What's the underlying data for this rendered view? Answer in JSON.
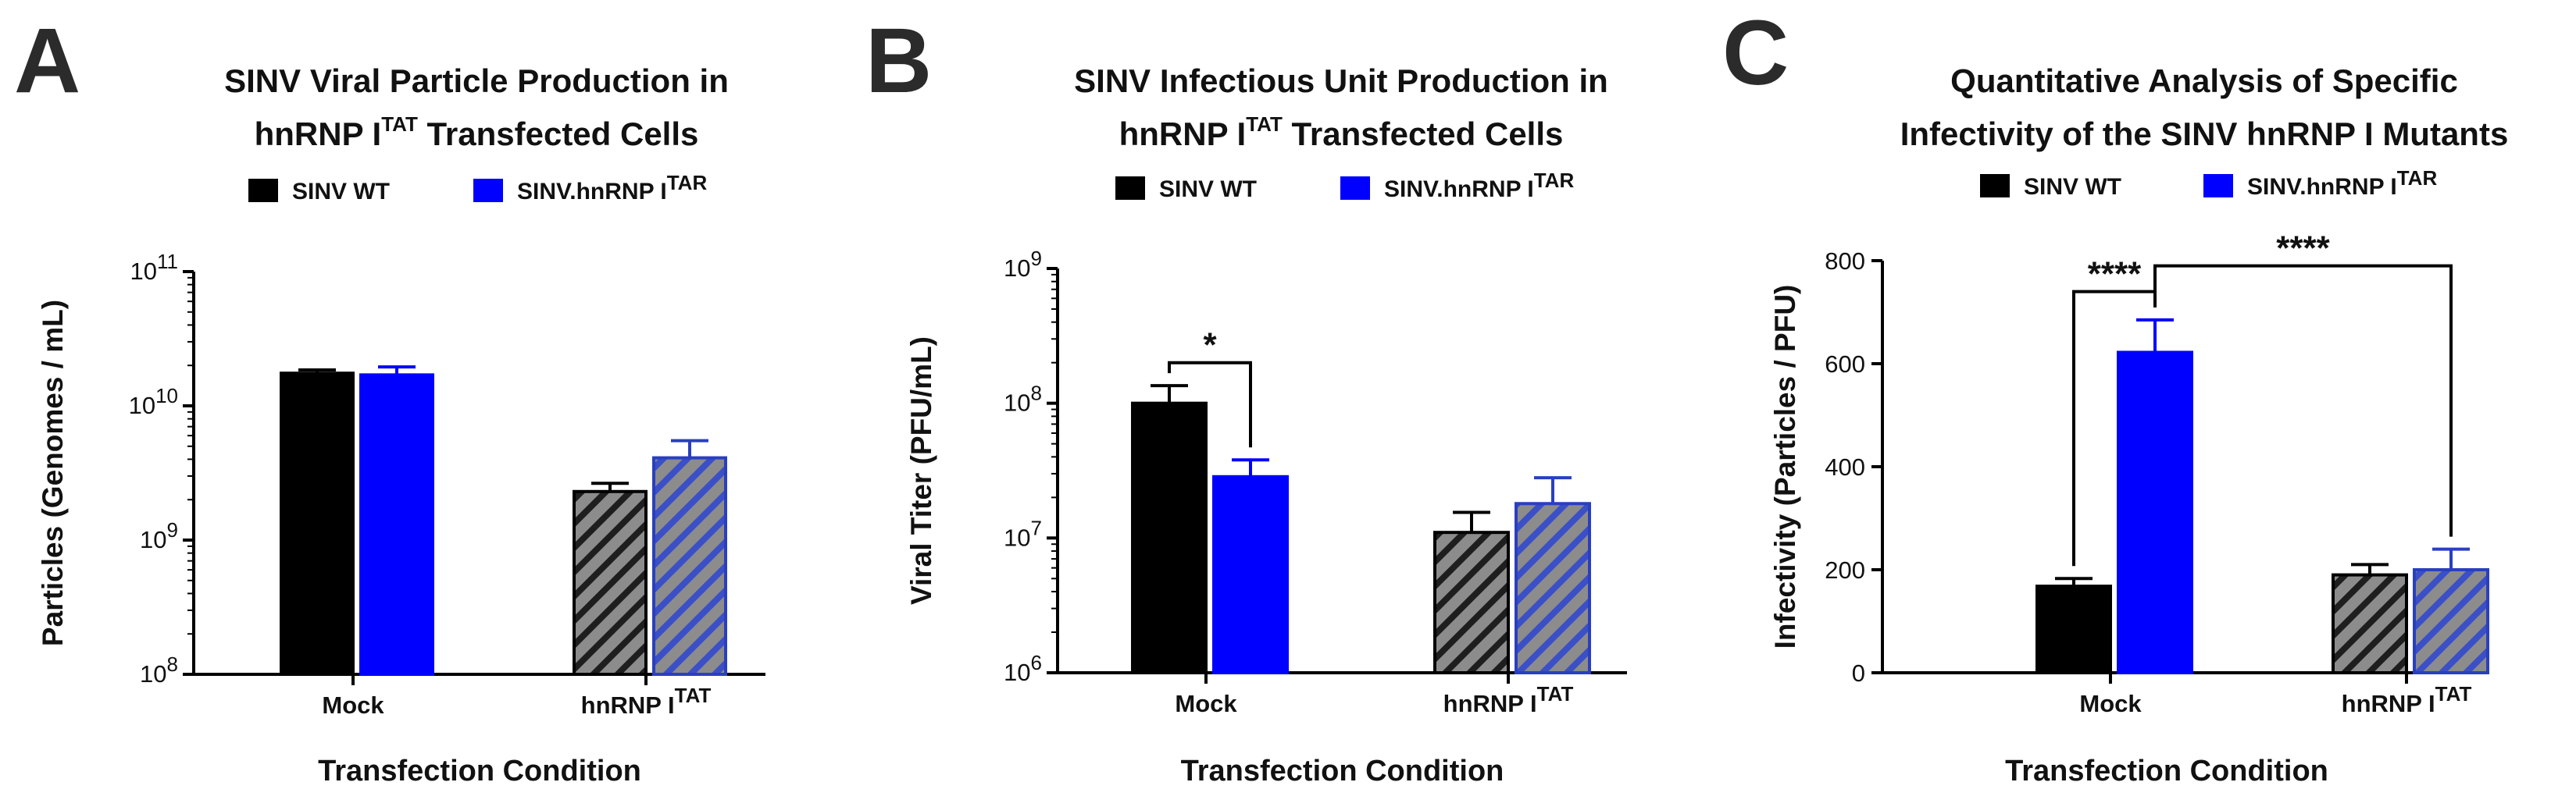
{
  "colors": {
    "wt": "#000000",
    "tar": "#0000ff",
    "hatch_bg": "#8c8c8c",
    "hatch_line_wt": "#1e1e1e",
    "hatch_line_tar": "#3b4fc7"
  },
  "chart_data": [
    {
      "panel": "A",
      "type": "bar",
      "title_line1": "SINV Viral Particle Production in",
      "title_line2": {
        "base": "hnRNP I",
        "sup": "TAT",
        "rest": " Transfected Cells"
      },
      "legend": [
        {
          "name": "SINV WT",
          "color": "#000000"
        },
        {
          "base": "SINV.hnRNP I",
          "sup": "TAR",
          "color": "#0000ff"
        }
      ],
      "legend_placement": "top",
      "ylabel": "Particles (Genomes / mL)",
      "xlabel": "Transfection Condition",
      "yscale": "log",
      "ylim": [
        100000000,
        100000000000
      ],
      "yticks": [
        {
          "base": "10",
          "exp": "8",
          "value": 100000000
        },
        {
          "base": "10",
          "exp": "9",
          "value": 1000000000
        },
        {
          "base": "10",
          "exp": "10",
          "value": 10000000000
        },
        {
          "base": "10",
          "exp": "11",
          "value": 100000000000
        }
      ],
      "categories": [
        {
          "base": "Mock",
          "sup": ""
        },
        {
          "base": "hnRNP I",
          "sup": "TAT"
        }
      ],
      "series": [
        {
          "name": "SINV WT",
          "values": [
            17500000000,
            2300000000
          ],
          "errors": [
            18500000000,
            2650000000
          ]
        },
        {
          "name": "SINV.hnRNP I TAR",
          "values": [
            17000000000,
            4100000000
          ],
          "errors": [
            19500000000,
            5500000000
          ]
        }
      ],
      "significance": []
    },
    {
      "panel": "B",
      "type": "bar",
      "title_line1": "SINV Infectious Unit Production in",
      "title_line2": {
        "base": "hnRNP I",
        "sup": "TAT",
        "rest": " Transfected Cells"
      },
      "legend": [
        {
          "name": "SINV WT",
          "color": "#000000"
        },
        {
          "base": "SINV.hnRNP I",
          "sup": "TAR",
          "color": "#0000ff"
        }
      ],
      "legend_placement": "top",
      "ylabel": "Viral Titer (PFU/mL)",
      "xlabel": "Transfection Condition",
      "yscale": "log",
      "ylim": [
        1000000,
        1000000000
      ],
      "yticks": [
        {
          "base": "10",
          "exp": "6",
          "value": 1000000
        },
        {
          "base": "10",
          "exp": "7",
          "value": 10000000
        },
        {
          "base": "10",
          "exp": "8",
          "value": 100000000
        },
        {
          "base": "10",
          "exp": "9",
          "value": 1000000000
        }
      ],
      "categories": [
        {
          "base": "Mock",
          "sup": ""
        },
        {
          "base": "hnRNP I",
          "sup": "TAT"
        }
      ],
      "series": [
        {
          "name": "SINV WT",
          "values": [
            100000000,
            11000000
          ],
          "errors": [
            135000000,
            15500000
          ]
        },
        {
          "name": "SINV.hnRNP I TAR",
          "values": [
            28500000,
            18000000
          ],
          "errors": [
            38000000,
            28000000
          ]
        }
      ],
      "significance": [
        {
          "label": "*",
          "from": [
            0,
            0
          ],
          "to": [
            0,
            1
          ],
          "bracket_value": 200000000
        }
      ]
    },
    {
      "panel": "C",
      "type": "bar",
      "title_line1": "Quantitative Analysis of Specific",
      "title_line2": {
        "base": "Infectivity of the SINV hnRNP I Mutants",
        "sup": "",
        "rest": ""
      },
      "legend": [
        {
          "name": "SINV WT",
          "color": "#000000"
        },
        {
          "base": "SINV.hnRNP I",
          "sup": "TAR",
          "color": "#0000ff"
        }
      ],
      "legend_placement": "top",
      "ylabel": "Infectivity (Particles / PFU)",
      "xlabel": "Transfection Condition",
      "yscale": "linear",
      "ylim": [
        0,
        800
      ],
      "yticks": [
        {
          "base": "0",
          "exp": "",
          "value": 0
        },
        {
          "base": "200",
          "exp": "",
          "value": 200
        },
        {
          "base": "400",
          "exp": "",
          "value": 400
        },
        {
          "base": "600",
          "exp": "",
          "value": 600
        },
        {
          "base": "800",
          "exp": "",
          "value": 800
        }
      ],
      "categories": [
        {
          "base": "Mock",
          "sup": ""
        },
        {
          "base": "hnRNP I",
          "sup": "TAT"
        }
      ],
      "series": [
        {
          "name": "SINV WT",
          "values": [
            168,
            190
          ],
          "errors": [
            183,
            210
          ]
        },
        {
          "name": "SINV.hnRNP I TAR",
          "values": [
            622,
            200
          ],
          "errors": [
            685,
            240
          ]
        }
      ],
      "significance": [
        {
          "label": "****",
          "from": [
            0,
            0
          ],
          "to": [
            0,
            1
          ],
          "bracket_value": 740
        },
        {
          "label": "****",
          "from": [
            0,
            1
          ],
          "to": [
            1,
            1
          ],
          "bracket_value": 790
        }
      ]
    }
  ]
}
